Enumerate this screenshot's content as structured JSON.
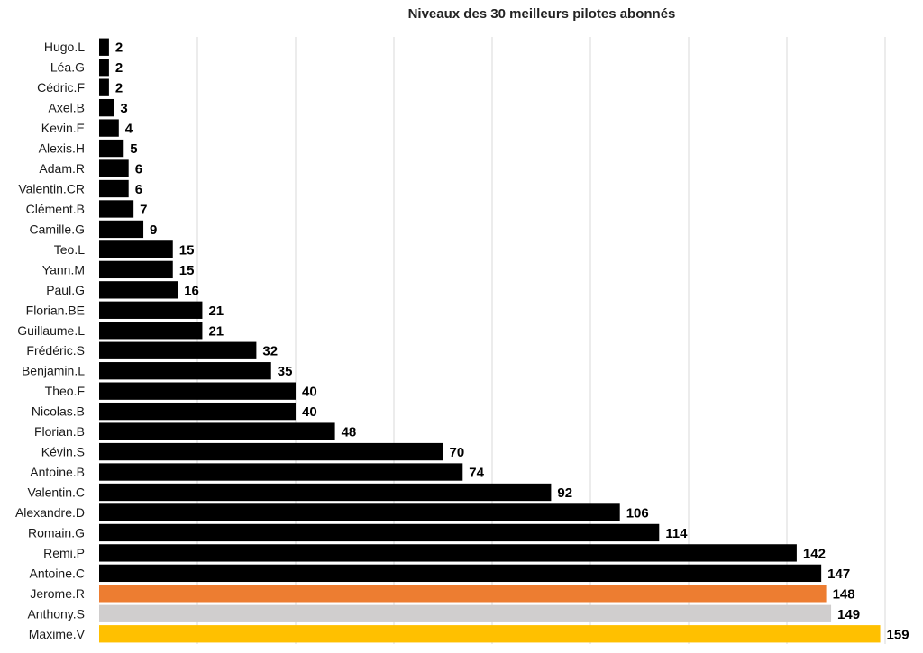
{
  "chart_data": {
    "type": "bar",
    "orientation": "horizontal",
    "title": "Niveaux des 30 meilleurs pilotes abonnés",
    "xlabel": "",
    "ylabel": "",
    "xlim": [
      0,
      160
    ],
    "grid": true,
    "legend": "none",
    "categories": [
      "Hugo.L",
      "Léa.G",
      "Cédric.F",
      "Axel.B",
      "Kevin.E",
      "Alexis.H",
      "Adam.R",
      "Valentin.CR",
      "Clément.B",
      "Camille.G",
      "Teo.L",
      "Yann.M",
      "Paul.G",
      "Florian.BE",
      "Guillaume.L",
      "Frédéric.S",
      "Benjamin.L",
      "Theo.F",
      "Nicolas.B",
      "Florian.B",
      "Kévin.S",
      "Antoine.B",
      "Valentin.C",
      "Alexandre.D",
      "Romain.G",
      "Remi.P",
      "Antoine.C",
      "Jerome.R",
      "Anthony.S",
      "Maxime.V"
    ],
    "values": [
      2,
      2,
      2,
      3,
      4,
      5,
      6,
      6,
      7,
      9,
      15,
      15,
      16,
      21,
      21,
      32,
      35,
      40,
      40,
      48,
      70,
      74,
      92,
      106,
      114,
      142,
      147,
      148,
      149,
      159
    ],
    "colors": {
      "default": "#000000",
      "Jerome.R": "#ED7D31",
      "Anthony.S": "#D0CECE",
      "Maxime.V": "#FFC000"
    },
    "gridline_color": "#D9D9D9"
  }
}
